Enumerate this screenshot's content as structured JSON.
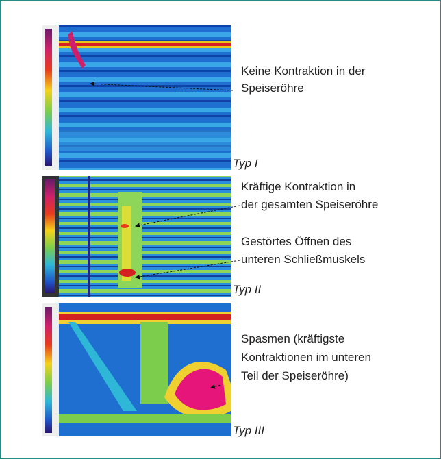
{
  "figure": {
    "panels": [
      {
        "label": "Typ I",
        "annotation": [
          "Keine Kontraktion in der",
          "Speiseröhre"
        ]
      },
      {
        "label": "Typ II",
        "annotation": [
          "Kräftige Kontraktion in",
          "der gesamten Speiseröhre",
          "Gestörtes Öffnen des",
          "unteren Schließmuskels"
        ]
      },
      {
        "label": "Typ III",
        "annotation": [
          "Spasmen (kräftigste",
          "Kontraktionen im unteren",
          "Teil der Speiseröhre)"
        ]
      }
    ]
  }
}
